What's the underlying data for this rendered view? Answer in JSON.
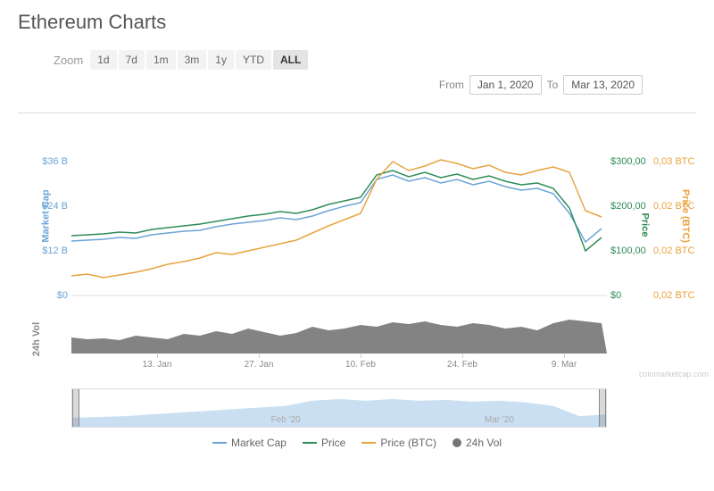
{
  "title": "Ethereum Charts",
  "zoom": {
    "label": "Zoom",
    "options": [
      "1d",
      "7d",
      "1m",
      "3m",
      "1y",
      "YTD",
      "ALL"
    ],
    "active": "ALL"
  },
  "date_range": {
    "from_label": "From",
    "from": "Jan 1, 2020",
    "to_label": "To",
    "to": "Mar 13, 2020"
  },
  "axes": {
    "market_cap": {
      "label": "Market Cap",
      "color": "#6ba4d8",
      "ticks": [
        {
          "v": 0,
          "y": 200,
          "t": "$0"
        },
        {
          "v": 12,
          "y": 150,
          "t": "$12 B"
        },
        {
          "v": 24,
          "y": 100,
          "t": "$24 B"
        },
        {
          "v": 36,
          "y": 50,
          "t": "$36 B"
        }
      ]
    },
    "price": {
      "label": "Price",
      "color": "#2e8b57",
      "ticks": [
        {
          "v": 0,
          "y": 200,
          "t": "$0"
        },
        {
          "v": 100,
          "y": 150,
          "t": "$100,00"
        },
        {
          "v": 200,
          "y": 100,
          "t": "$200,00"
        },
        {
          "v": 300,
          "y": 50,
          "t": "$300,00"
        }
      ]
    },
    "price_btc": {
      "label": "Price (BTC)",
      "color": "#e8a33d",
      "ticks": [
        {
          "v": 0.02,
          "y": 200,
          "t": "0,02 BTC"
        },
        {
          "v": 0.02,
          "y": 150,
          "t": "0,02 BTC"
        },
        {
          "v": 0.02,
          "y": 100,
          "t": "0,02 BTC"
        },
        {
          "v": 0.03,
          "y": 50,
          "t": "0,03 BTC"
        }
      ]
    },
    "vol": {
      "label": "24h Vol",
      "color": "#888888"
    },
    "x_ticks": [
      {
        "x": 16,
        "t": "13. Jan"
      },
      {
        "x": 35,
        "t": "27. Jan"
      },
      {
        "x": 54,
        "t": "10. Feb"
      },
      {
        "x": 73,
        "t": "24. Feb"
      },
      {
        "x": 92,
        "t": "9. Mar"
      }
    ]
  },
  "series": {
    "market_cap": {
      "color": "#6ba4d8",
      "width": 1.5,
      "pts": [
        [
          0,
          139
        ],
        [
          3,
          138
        ],
        [
          6,
          137
        ],
        [
          9,
          135
        ],
        [
          12,
          136
        ],
        [
          15,
          132
        ],
        [
          18,
          130
        ],
        [
          21,
          128
        ],
        [
          24,
          127
        ],
        [
          27,
          123
        ],
        [
          30,
          120
        ],
        [
          33,
          118
        ],
        [
          36,
          116
        ],
        [
          39,
          113
        ],
        [
          42,
          115
        ],
        [
          45,
          111
        ],
        [
          48,
          105
        ],
        [
          51,
          100
        ],
        [
          54,
          96
        ],
        [
          57,
          70
        ],
        [
          60,
          65
        ],
        [
          63,
          72
        ],
        [
          66,
          68
        ],
        [
          69,
          74
        ],
        [
          72,
          70
        ],
        [
          75,
          76
        ],
        [
          78,
          72
        ],
        [
          81,
          78
        ],
        [
          84,
          82
        ],
        [
          87,
          80
        ],
        [
          90,
          86
        ],
        [
          93,
          108
        ],
        [
          96,
          140
        ],
        [
          99,
          125
        ]
      ]
    },
    "price": {
      "color": "#2e8b57",
      "width": 1.5,
      "pts": [
        [
          0,
          133
        ],
        [
          3,
          132
        ],
        [
          6,
          131
        ],
        [
          9,
          129
        ],
        [
          12,
          130
        ],
        [
          15,
          126
        ],
        [
          18,
          124
        ],
        [
          21,
          122
        ],
        [
          24,
          120
        ],
        [
          27,
          117
        ],
        [
          30,
          114
        ],
        [
          33,
          111
        ],
        [
          36,
          109
        ],
        [
          39,
          106
        ],
        [
          42,
          108
        ],
        [
          45,
          104
        ],
        [
          48,
          98
        ],
        [
          51,
          94
        ],
        [
          54,
          90
        ],
        [
          57,
          65
        ],
        [
          60,
          60
        ],
        [
          63,
          67
        ],
        [
          66,
          62
        ],
        [
          69,
          68
        ],
        [
          72,
          64
        ],
        [
          75,
          70
        ],
        [
          78,
          66
        ],
        [
          81,
          72
        ],
        [
          84,
          76
        ],
        [
          87,
          74
        ],
        [
          90,
          80
        ],
        [
          93,
          102
        ],
        [
          96,
          150
        ],
        [
          99,
          135
        ]
      ]
    },
    "price_btc": {
      "color": "#e8a33d",
      "width": 1.5,
      "pts": [
        [
          0,
          178
        ],
        [
          3,
          176
        ],
        [
          6,
          180
        ],
        [
          9,
          177
        ],
        [
          12,
          174
        ],
        [
          15,
          170
        ],
        [
          18,
          165
        ],
        [
          21,
          162
        ],
        [
          24,
          158
        ],
        [
          27,
          152
        ],
        [
          30,
          154
        ],
        [
          33,
          150
        ],
        [
          36,
          146
        ],
        [
          39,
          142
        ],
        [
          42,
          138
        ],
        [
          45,
          130
        ],
        [
          48,
          122
        ],
        [
          51,
          115
        ],
        [
          54,
          108
        ],
        [
          57,
          70
        ],
        [
          60,
          50
        ],
        [
          63,
          60
        ],
        [
          66,
          55
        ],
        [
          69,
          48
        ],
        [
          72,
          52
        ],
        [
          75,
          58
        ],
        [
          78,
          54
        ],
        [
          81,
          62
        ],
        [
          84,
          65
        ],
        [
          87,
          60
        ],
        [
          90,
          56
        ],
        [
          93,
          62
        ],
        [
          96,
          105
        ],
        [
          99,
          112
        ]
      ]
    },
    "volume": {
      "color": "#757575",
      "pts": [
        [
          0,
          18
        ],
        [
          3,
          16
        ],
        [
          6,
          17
        ],
        [
          9,
          15
        ],
        [
          12,
          20
        ],
        [
          15,
          18
        ],
        [
          18,
          16
        ],
        [
          21,
          22
        ],
        [
          24,
          20
        ],
        [
          27,
          25
        ],
        [
          30,
          22
        ],
        [
          33,
          28
        ],
        [
          36,
          24
        ],
        [
          39,
          20
        ],
        [
          42,
          23
        ],
        [
          45,
          30
        ],
        [
          48,
          26
        ],
        [
          51,
          28
        ],
        [
          54,
          32
        ],
        [
          57,
          30
        ],
        [
          60,
          35
        ],
        [
          63,
          33
        ],
        [
          66,
          36
        ],
        [
          69,
          32
        ],
        [
          72,
          30
        ],
        [
          75,
          34
        ],
        [
          78,
          32
        ],
        [
          81,
          28
        ],
        [
          84,
          30
        ],
        [
          87,
          26
        ],
        [
          90,
          34
        ],
        [
          93,
          38
        ],
        [
          96,
          36
        ],
        [
          99,
          34
        ]
      ]
    }
  },
  "navigator": {
    "labels": [
      {
        "x": 40,
        "t": "Feb '20"
      },
      {
        "x": 80,
        "t": "Mar '20"
      }
    ],
    "color": "#6ba4d8",
    "pts": [
      [
        0,
        34
      ],
      [
        5,
        33
      ],
      [
        10,
        32
      ],
      [
        15,
        30
      ],
      [
        20,
        28
      ],
      [
        25,
        26
      ],
      [
        30,
        24
      ],
      [
        35,
        22
      ],
      [
        40,
        20
      ],
      [
        45,
        14
      ],
      [
        50,
        12
      ],
      [
        55,
        14
      ],
      [
        60,
        12
      ],
      [
        65,
        14
      ],
      [
        70,
        13
      ],
      [
        75,
        15
      ],
      [
        80,
        14
      ],
      [
        85,
        16
      ],
      [
        90,
        20
      ],
      [
        95,
        32
      ],
      [
        100,
        30
      ]
    ]
  },
  "legend": [
    {
      "type": "line",
      "color": "#6ba4d8",
      "label": "Market Cap"
    },
    {
      "type": "line",
      "color": "#2e8b57",
      "label": "Price"
    },
    {
      "type": "line",
      "color": "#e8a33d",
      "label": "Price (BTC)"
    },
    {
      "type": "dot",
      "color": "#757575",
      "label": "24h Vol"
    }
  ],
  "watermark": "coinmarketcap.com"
}
